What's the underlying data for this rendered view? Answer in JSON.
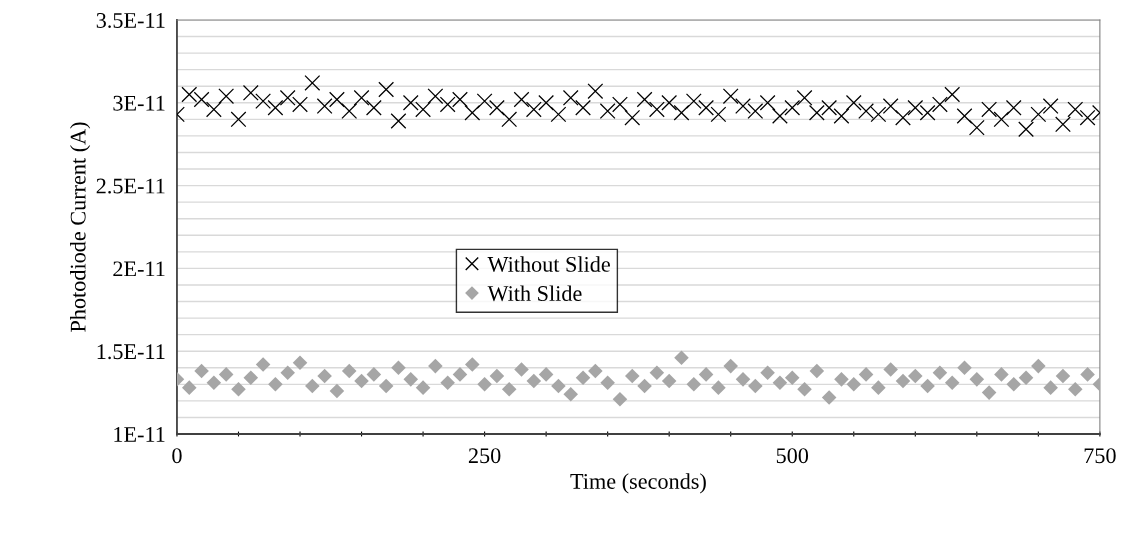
{
  "chart_data": {
    "type": "scatter",
    "xlabel": "Time (seconds)",
    "ylabel": "Photodiode Current (A)",
    "x": [
      0,
      10,
      20,
      30,
      40,
      50,
      60,
      70,
      80,
      90,
      100,
      110,
      120,
      130,
      140,
      150,
      160,
      170,
      180,
      190,
      200,
      210,
      220,
      230,
      240,
      250,
      260,
      270,
      280,
      290,
      300,
      310,
      320,
      330,
      340,
      350,
      360,
      370,
      380,
      390,
      400,
      410,
      420,
      430,
      440,
      450,
      460,
      470,
      480,
      490,
      500,
      510,
      520,
      530,
      540,
      550,
      560,
      570,
      580,
      590,
      600,
      610,
      620,
      630,
      640,
      650,
      660,
      670,
      680,
      690,
      700,
      710,
      720,
      730,
      740,
      750
    ],
    "series": [
      {
        "name": "Without Slide",
        "color": "#000000",
        "marker": "cross",
        "values": [
          2.93e-11,
          3.05e-11,
          3.02e-11,
          2.96e-11,
          3.04e-11,
          2.9e-11,
          3.06e-11,
          3.01e-11,
          2.97e-11,
          3.03e-11,
          2.99e-11,
          3.12e-11,
          2.98e-11,
          3.02e-11,
          2.95e-11,
          3.03e-11,
          2.97e-11,
          3.08e-11,
          2.89e-11,
          3e-11,
          2.96e-11,
          3.04e-11,
          2.99e-11,
          3.02e-11,
          2.94e-11,
          3.01e-11,
          2.97e-11,
          2.9e-11,
          3.02e-11,
          2.96e-11,
          3e-11,
          2.93e-11,
          3.03e-11,
          2.97e-11,
          3.07e-11,
          2.95e-11,
          2.99e-11,
          2.91e-11,
          3.02e-11,
          2.96e-11,
          3e-11,
          2.94e-11,
          3.01e-11,
          2.97e-11,
          2.93e-11,
          3.04e-11,
          2.98e-11,
          2.95e-11,
          3e-11,
          2.92e-11,
          2.97e-11,
          3.03e-11,
          2.94e-11,
          2.97e-11,
          2.92e-11,
          3e-11,
          2.95e-11,
          2.93e-11,
          2.98e-11,
          2.91e-11,
          2.97e-11,
          2.94e-11,
          2.99e-11,
          3.05e-11,
          2.92e-11,
          2.85e-11,
          2.96e-11,
          2.9e-11,
          2.97e-11,
          2.84e-11,
          2.93e-11,
          2.98e-11,
          2.87e-11,
          2.96e-11,
          2.91e-11,
          2.94e-11
        ]
      },
      {
        "name": "With Slide",
        "color": "#a6a6a6",
        "marker": "diamond",
        "values": [
          1.33e-11,
          1.28e-11,
          1.38e-11,
          1.31e-11,
          1.36e-11,
          1.27e-11,
          1.34e-11,
          1.42e-11,
          1.3e-11,
          1.37e-11,
          1.43e-11,
          1.29e-11,
          1.35e-11,
          1.26e-11,
          1.38e-11,
          1.32e-11,
          1.36e-11,
          1.29e-11,
          1.4e-11,
          1.33e-11,
          1.28e-11,
          1.41e-11,
          1.31e-11,
          1.36e-11,
          1.42e-11,
          1.3e-11,
          1.35e-11,
          1.27e-11,
          1.39e-11,
          1.32e-11,
          1.36e-11,
          1.29e-11,
          1.24e-11,
          1.34e-11,
          1.38e-11,
          1.31e-11,
          1.21e-11,
          1.35e-11,
          1.29e-11,
          1.37e-11,
          1.32e-11,
          1.46e-11,
          1.3e-11,
          1.36e-11,
          1.28e-11,
          1.41e-11,
          1.33e-11,
          1.29e-11,
          1.37e-11,
          1.31e-11,
          1.34e-11,
          1.27e-11,
          1.38e-11,
          1.22e-11,
          1.33e-11,
          1.3e-11,
          1.36e-11,
          1.28e-11,
          1.39e-11,
          1.32e-11,
          1.35e-11,
          1.29e-11,
          1.37e-11,
          1.31e-11,
          1.4e-11,
          1.33e-11,
          1.25e-11,
          1.36e-11,
          1.3e-11,
          1.34e-11,
          1.41e-11,
          1.28e-11,
          1.35e-11,
          1.27e-11,
          1.36e-11,
          1.3e-11
        ]
      }
    ],
    "xlim": [
      0,
      750
    ],
    "ylim": [
      1e-11,
      3.5e-11
    ],
    "xticks": [
      0,
      {
        "value": 50,
        "label": null
      },
      {
        "value": 100,
        "label": null
      },
      {
        "value": 150,
        "label": null
      },
      {
        "value": 200,
        "label": null
      },
      250,
      {
        "value": 300,
        "label": null
      },
      {
        "value": 350,
        "label": null
      },
      {
        "value": 400,
        "label": null
      },
      {
        "value": 450,
        "label": null
      },
      500,
      {
        "value": 550,
        "label": null
      },
      {
        "value": 600,
        "label": null
      },
      {
        "value": 650,
        "label": null
      },
      {
        "value": 700,
        "label": null
      },
      750
    ],
    "yticks": [
      {
        "value": 1e-11,
        "label": "1E-11"
      },
      {
        "value": 1.1e-11,
        "label": null
      },
      {
        "value": 1.2e-11,
        "label": null
      },
      {
        "value": 1.3e-11,
        "label": null
      },
      {
        "value": 1.4e-11,
        "label": null
      },
      {
        "value": 1.5e-11,
        "label": "1.5E-11"
      },
      {
        "value": 1.6e-11,
        "label": null
      },
      {
        "value": 1.7e-11,
        "label": null
      },
      {
        "value": 1.8e-11,
        "label": null
      },
      {
        "value": 1.9e-11,
        "label": null
      },
      {
        "value": 2e-11,
        "label": "2E-11"
      },
      {
        "value": 2.1e-11,
        "label": null
      },
      {
        "value": 2.2e-11,
        "label": null
      },
      {
        "value": 2.3e-11,
        "label": null
      },
      {
        "value": 2.4e-11,
        "label": null
      },
      {
        "value": 2.5e-11,
        "label": "2.5E-11"
      },
      {
        "value": 2.6e-11,
        "label": null
      },
      {
        "value": 2.7e-11,
        "label": null
      },
      {
        "value": 2.8e-11,
        "label": null
      },
      {
        "value": 2.9e-11,
        "label": null
      },
      {
        "value": 3e-11,
        "label": "3E-11"
      },
      {
        "value": 3.1e-11,
        "label": null
      },
      {
        "value": 3.2e-11,
        "label": null
      },
      {
        "value": 3.3e-11,
        "label": null
      },
      {
        "value": 3.4e-11,
        "label": null
      },
      {
        "value": 3.5e-11,
        "label": "3.5E-11"
      }
    ],
    "grid": "y",
    "legend": "center"
  }
}
